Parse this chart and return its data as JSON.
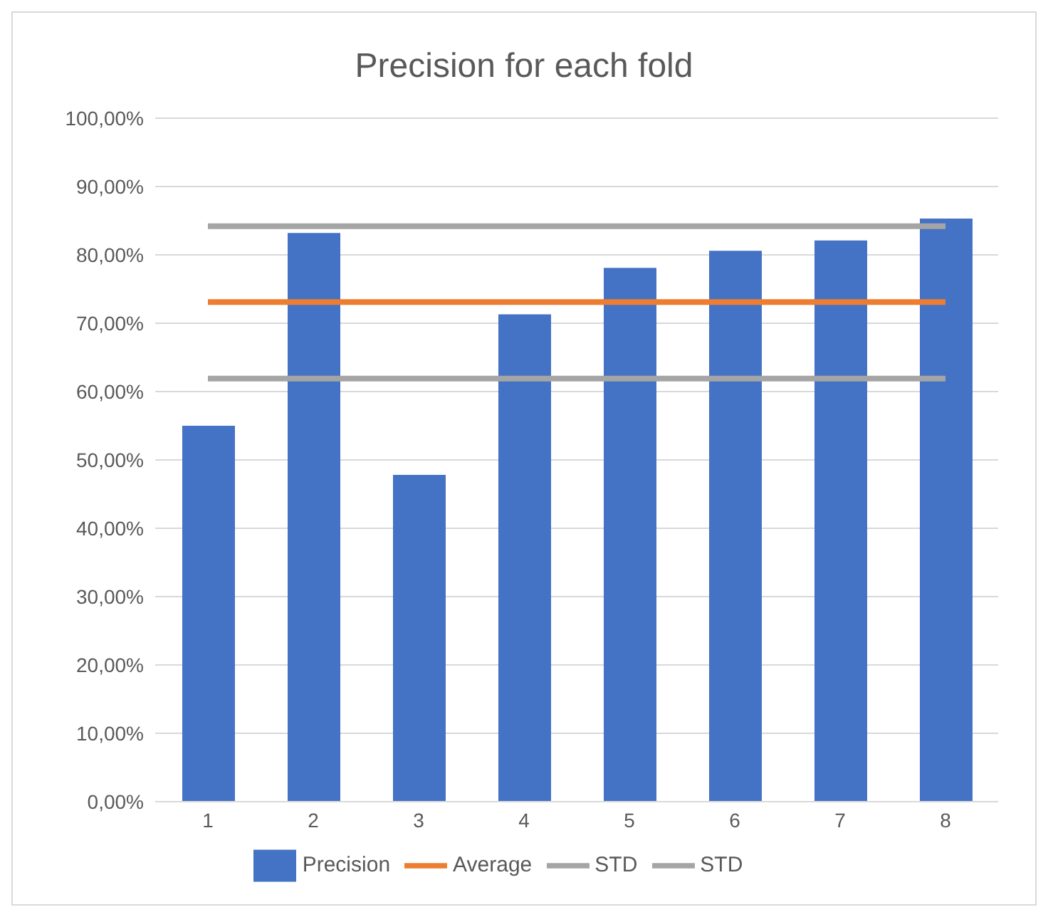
{
  "chart_data": {
    "type": "bar",
    "title": "Precision for each fold",
    "categories": [
      "1",
      "2",
      "3",
      "4",
      "5",
      "6",
      "7",
      "8"
    ],
    "series": [
      {
        "name": "Precision",
        "color": "#4472c4",
        "values": [
          55.0,
          83.2,
          47.8,
          71.3,
          78.1,
          80.6,
          82.1,
          85.3
        ]
      },
      {
        "name": "Average",
        "type": "line",
        "color": "#ed7d31",
        "values": [
          73.1,
          73.1,
          73.1,
          73.1,
          73.1,
          73.1,
          73.1,
          73.1
        ]
      },
      {
        "name": "STD",
        "type": "line",
        "color": "#a5a5a5",
        "values": [
          84.2,
          84.2,
          84.2,
          84.2,
          84.2,
          84.2,
          84.2,
          84.2
        ]
      },
      {
        "name": "STD",
        "type": "line",
        "color": "#a5a5a5",
        "values": [
          61.9,
          61.9,
          61.9,
          61.9,
          61.9,
          61.9,
          61.9,
          61.9
        ]
      }
    ],
    "ylim": [
      0,
      100
    ],
    "yticks": [
      {
        "value": 0,
        "label": "0,00%"
      },
      {
        "value": 10,
        "label": "10,00%"
      },
      {
        "value": 20,
        "label": "20,00%"
      },
      {
        "value": 30,
        "label": "30,00%"
      },
      {
        "value": 40,
        "label": "40,00%"
      },
      {
        "value": 50,
        "label": "50,00%"
      },
      {
        "value": 60,
        "label": "60,00%"
      },
      {
        "value": 70,
        "label": "70,00%"
      },
      {
        "value": 80,
        "label": "80,00%"
      },
      {
        "value": 90,
        "label": "90,00%"
      },
      {
        "value": 100,
        "label": "100,00%"
      }
    ],
    "grid": "y",
    "legend": "bottom",
    "marker": "none",
    "line_style": "solid"
  }
}
